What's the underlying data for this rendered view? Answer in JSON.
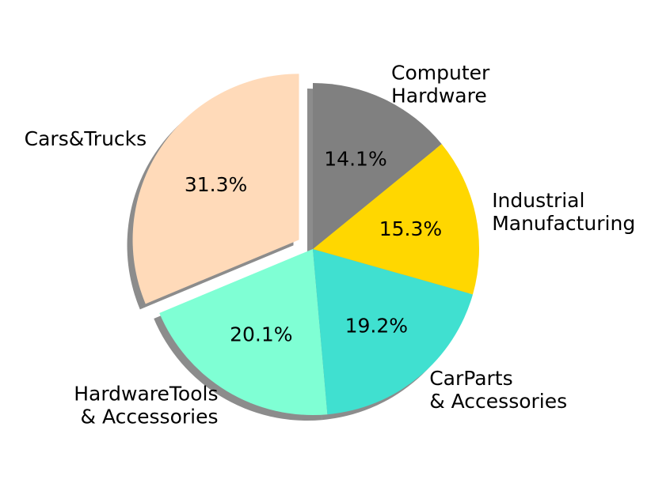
{
  "chart_data": {
    "type": "pie",
    "title": "",
    "start_angle_deg": 90,
    "direction": "counterclockwise",
    "shadow": true,
    "slices": [
      {
        "label": "Cars&Trucks",
        "value": 31.3,
        "pct_label": "31.3%",
        "color": "#FFDAB9",
        "explode": true
      },
      {
        "label": "HardwareTools\n& Accessories",
        "value": 20.1,
        "pct_label": "20.1%",
        "color": "#7FFFD4",
        "explode": false
      },
      {
        "label": "CarParts\n& Accessories",
        "value": 19.2,
        "pct_label": "19.2%",
        "color": "#40E0D0",
        "explode": false
      },
      {
        "label": "Industrial\nManufacturing",
        "value": 15.3,
        "pct_label": "15.3%",
        "color": "#FFD700",
        "explode": false
      },
      {
        "label": "Computer\nHardware",
        "value": 14.1,
        "pct_label": "14.1%",
        "color": "#808080",
        "explode": false
      }
    ]
  }
}
